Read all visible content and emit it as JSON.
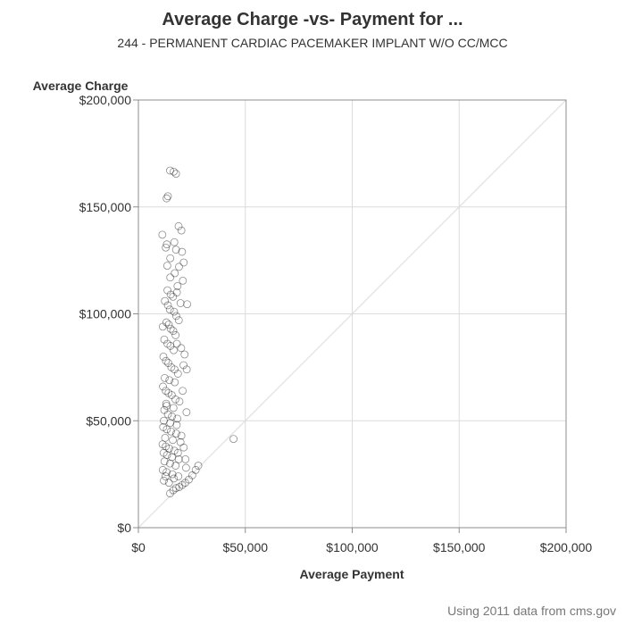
{
  "chart_data": {
    "type": "scatter",
    "title": "Average Charge -vs- Payment for ...",
    "subtitle": "244 - PERMANENT CARDIAC PACEMAKER IMPLANT W/O CC/MCC",
    "xlabel": "Average Payment",
    "ylabel": "Average Charge",
    "footnote": "Using 2011 data from cms.gov",
    "xlim": [
      0,
      200000
    ],
    "ylim": [
      0,
      200000
    ],
    "x_ticks": [
      0,
      50000,
      100000,
      150000,
      200000
    ],
    "x_tick_labels": [
      "$0",
      "$50,000",
      "$100,000",
      "$150,000",
      "$200,000"
    ],
    "y_ticks": [
      0,
      50000,
      100000,
      150000,
      200000
    ],
    "y_tick_labels": [
      "$0",
      "$50,000",
      "$100,000",
      "$150,000",
      "$200,000"
    ],
    "grid": true,
    "reference_line": "y = x",
    "marker": "open-circle",
    "marker_color": "#000000",
    "series": [
      {
        "x": [
          14800,
          16500,
          17600,
          13800,
          13200,
          11200,
          18800,
          20100,
          12800,
          13300,
          16800,
          17600,
          14900,
          20400,
          21200,
          19000,
          13500,
          14900,
          17000,
          20800,
          18300,
          13600,
          15100,
          16200,
          12400,
          18000,
          19700,
          13800,
          14700,
          16700,
          17700,
          18900,
          22800,
          13100,
          14200,
          15100,
          16300,
          17400,
          11400,
          12100,
          13600,
          15000,
          16500,
          18000,
          20000,
          21600,
          11700,
          12900,
          14000,
          15400,
          16900,
          18500,
          12300,
          14500,
          17000,
          21100,
          22600,
          11500,
          12800,
          14100,
          15600,
          17300,
          19200,
          13000,
          16400,
          20700,
          12100,
          13800,
          15700,
          18200,
          11900,
          14900,
          17900,
          22500,
          11600,
          13300,
          15200,
          17700,
          20100,
          12500,
          16100,
          19700,
          11300,
          12800,
          14400,
          16800,
          21200,
          11800,
          13400,
          15700,
          18900,
          12200,
          14800,
          17400,
          22300,
          11400,
          13200,
          15900,
          12700,
          16600,
          11900,
          14300,
          18700,
          14800,
          16300,
          17600,
          19100,
          20500,
          21900,
          23600,
          25200,
          26800,
          28000,
          13200,
          22000,
          18500,
          44500
        ],
        "y": [
          167000,
          166500,
          165500,
          155000,
          154000,
          137000,
          141000,
          139000,
          131000,
          132500,
          133500,
          130000,
          126000,
          129000,
          124000,
          122000,
          122500,
          117000,
          119000,
          115500,
          113000,
          111000,
          109000,
          108000,
          106000,
          110000,
          105000,
          104000,
          102000,
          101000,
          99000,
          97000,
          104500,
          96000,
          95000,
          93000,
          92000,
          90000,
          94000,
          88000,
          86000,
          85000,
          83000,
          86000,
          84000,
          81000,
          80000,
          78000,
          77000,
          75000,
          74000,
          72000,
          70000,
          69000,
          68000,
          76000,
          74000,
          66000,
          64000,
          63000,
          62000,
          60000,
          59000,
          58000,
          56000,
          64000,
          55000,
          53000,
          52000,
          51000,
          50000,
          49000,
          48000,
          54000,
          47000,
          46000,
          45000,
          44000,
          43000,
          42000,
          41000,
          40000,
          39000,
          38000,
          37000,
          36000,
          37500,
          35000,
          34000,
          33000,
          32000,
          31000,
          30000,
          29000,
          28000,
          27000,
          26000,
          25000,
          24000,
          23000,
          22000,
          21000,
          24000,
          16000,
          17500,
          18500,
          19000,
          20000,
          21000,
          22500,
          24500,
          27000,
          29000,
          57000,
          32000,
          35000,
          41500
        ]
      }
    ]
  }
}
